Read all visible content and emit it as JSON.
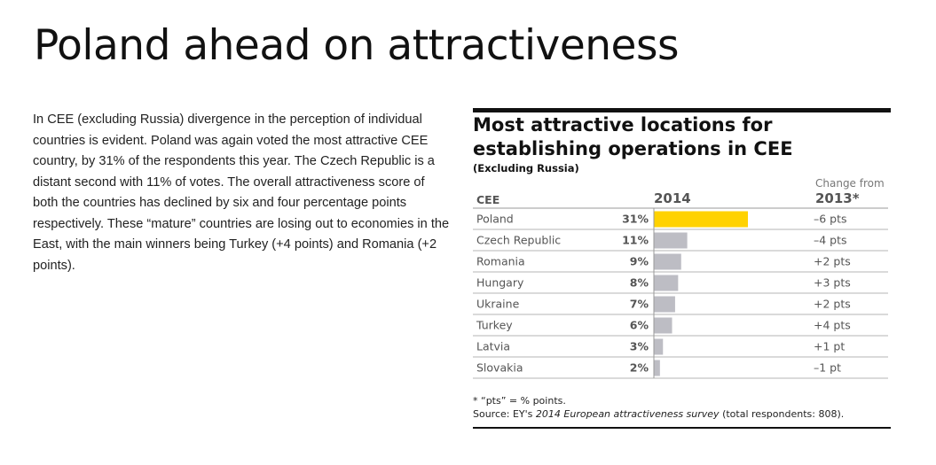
{
  "page_title": "Poland ahead on attractiveness",
  "body_text": " In CEE (excluding Russia) divergence in the perception of individual countries is evident. Poland was again voted the most attractive CEE country, by 31% of the respondents this year. The Czech Republic is a distant second with 11% of votes. The overall attractiveness score of both the countries has declined by six and four percentage points respectively. These “mature” countries are losing out to economies in the East, with the main winners being Turkey (+4 points) and Romania (+2 points).",
  "colors": {
    "highlight_bar": "#FFD200",
    "default_bar": "#BDBDC4",
    "rule": "#111111"
  },
  "chart_data": {
    "type": "bar",
    "orientation": "horizontal",
    "title": "Most attractive locations for establishing operations in CEE",
    "subtitle": "(Excluding Russia)",
    "column_headers": {
      "category": "CEE",
      "value": "2014",
      "change_line1": "Change from",
      "change_line2": "2013*"
    },
    "categories": [
      "Poland",
      "Czech Republic",
      "Romania",
      "Hungary",
      "Ukraine",
      "Turkey",
      "Latvia",
      "Slovakia"
    ],
    "values": [
      31,
      11,
      9,
      8,
      7,
      6,
      3,
      2
    ],
    "value_labels": [
      "31%",
      "11%",
      "9%",
      "8%",
      "7%",
      "6%",
      "3%",
      "2%"
    ],
    "changes": [
      "–6 pts",
      "–4 pts",
      "+2 pts",
      "+3 pts",
      "+2 pts",
      "+4 pts",
      "+1 pt",
      "–1 pt"
    ],
    "highlight_category": "Poland",
    "grid": false,
    "footnote": "* “pts” = % points.",
    "source_prefix": "Source: EY's ",
    "source_title": "2014 European attractiveness survey",
    "source_suffix": " (total respondents: 808)."
  }
}
